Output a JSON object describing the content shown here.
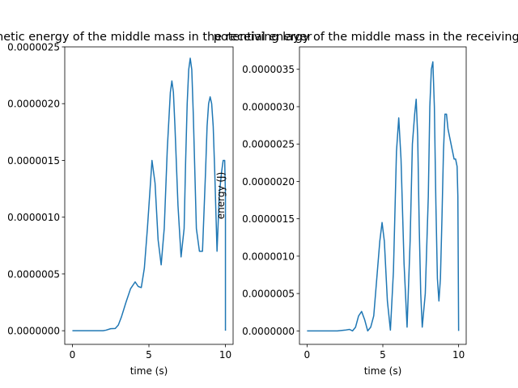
{
  "chart_data": [
    {
      "type": "line",
      "title": "kinetic energy of the middle mass in the receiving layer",
      "xlabel": "time (s)",
      "ylabel": "",
      "xlim": [
        -0.5,
        10.5
      ],
      "ylim": [
        -1.2e-07,
        2.5e-06
      ],
      "xticks": [
        0,
        5,
        10
      ],
      "xtick_labels": [
        "0",
        "5",
        "10"
      ],
      "yticks": [
        0,
        5e-07,
        1e-06,
        1.5e-06,
        2e-06,
        2.5e-06
      ],
      "ytick_labels": [
        "0.0000000",
        "0.0000005",
        "0.0000010",
        "0.0000015",
        "0.0000020",
        "0.0000025"
      ],
      "grid": false,
      "color": "#1f77b4",
      "series": [
        {
          "x": [
            0,
            1.0,
            2.0,
            2.2,
            2.5,
            2.8,
            3.0,
            3.2,
            3.5,
            3.8,
            4.1,
            4.3,
            4.5,
            4.7,
            4.9,
            5.1,
            5.2,
            5.4,
            5.6,
            5.8,
            6.0,
            6.2,
            6.4,
            6.5,
            6.6,
            6.7,
            6.9,
            7.1,
            7.3,
            7.4,
            7.5,
            7.6,
            7.7,
            7.8,
            7.9,
            8.0,
            8.1,
            8.3,
            8.5,
            8.7,
            8.8,
            8.9,
            9.0,
            9.1,
            9.2,
            9.3,
            9.45,
            9.6,
            9.75,
            9.85,
            9.95,
            10.0,
            10.0,
            10.0,
            10.0
          ],
          "y": [
            0,
            0,
            0,
            5e-09,
            1.8e-08,
            2e-08,
            5e-08,
            1.2e-07,
            2.5e-07,
            3.7e-07,
            4.3e-07,
            3.9e-07,
            3.8e-07,
            5.5e-07,
            9e-07,
            1.3e-06,
            1.5e-06,
            1.3e-06,
            8e-07,
            5.8e-07,
            9e-07,
            1.6e-06,
            2.1e-06,
            2.2e-06,
            2.1e-06,
            1.8e-06,
            1.1e-06,
            6.5e-07,
            9e-07,
            1.5e-06,
            2e-06,
            2.3e-06,
            2.4e-06,
            2.3e-06,
            1.9e-06,
            1.4e-06,
            9e-07,
            7e-07,
            7e-07,
            1.4e-06,
            1.8e-06,
            2e-06,
            2.06e-06,
            2e-06,
            1.8e-06,
            1.4e-06,
            7e-07,
            1.2e-06,
            1.4e-06,
            1.5e-06,
            1.5e-06,
            1.2e-06,
            5e-07,
            2e-07,
            0
          ]
        }
      ]
    },
    {
      "type": "line",
      "title": "potential energy of the middle mass in the receiving layer",
      "xlabel": "time (s)",
      "ylabel": "energy (J)",
      "xlim": [
        -0.5,
        10.5
      ],
      "ylim": [
        -1.8e-07,
        3.8e-06
      ],
      "xticks": [
        0,
        5,
        10
      ],
      "xtick_labels": [
        "0",
        "5",
        "10"
      ],
      "yticks": [
        0,
        5e-07,
        1e-06,
        1.5e-06,
        2e-06,
        2.5e-06,
        3e-06,
        3.5e-06
      ],
      "ytick_labels": [
        "0.0000000",
        "0.0000005",
        "0.0000010",
        "0.0000015",
        "0.0000020",
        "0.0000025",
        "0.0000030",
        "0.0000035"
      ],
      "grid": false,
      "color": "#1f77b4",
      "series": [
        {
          "x": [
            0,
            1.0,
            2.0,
            2.5,
            2.8,
            3.0,
            3.2,
            3.4,
            3.6,
            3.8,
            4.0,
            4.2,
            4.4,
            4.6,
            4.8,
            4.95,
            5.1,
            5.3,
            5.5,
            5.7,
            5.9,
            6.05,
            6.2,
            6.4,
            6.6,
            6.8,
            6.95,
            7.1,
            7.2,
            7.3,
            7.4,
            7.5,
            7.6,
            7.8,
            8.0,
            8.1,
            8.2,
            8.3,
            8.4,
            8.5,
            8.6,
            8.7,
            8.8,
            8.9,
            9.0,
            9.1,
            9.2,
            9.3,
            9.4,
            9.5,
            9.6,
            9.7,
            9.8,
            9.9,
            9.95,
            10.0
          ],
          "y": [
            0,
            0,
            0,
            1e-08,
            2e-08,
            0.0,
            5e-08,
            2e-07,
            2.6e-07,
            1.5e-07,
            0.0,
            5e-08,
            2e-07,
            7e-07,
            1.2e-06,
            1.45e-06,
            1.2e-06,
            4e-07,
            1e-08,
            8e-07,
            2.4e-06,
            2.85e-06,
            2.3e-06,
            9e-07,
            5e-08,
            1.2e-06,
            2.5e-06,
            2.9e-06,
            3.1e-06,
            2.6e-06,
            1.4e-06,
            5e-07,
            5e-08,
            5e-07,
            1.8e-06,
            3e-06,
            3.5e-06,
            3.6e-06,
            3e-06,
            1.7e-06,
            7e-07,
            4e-07,
            7e-07,
            1.5e-06,
            2.4e-06,
            2.9e-06,
            2.9e-06,
            2.7e-06,
            2.6e-06,
            2.5e-06,
            2.4e-06,
            2.3e-06,
            2.3e-06,
            2.2e-06,
            1.8e-06,
            0
          ]
        }
      ]
    }
  ]
}
